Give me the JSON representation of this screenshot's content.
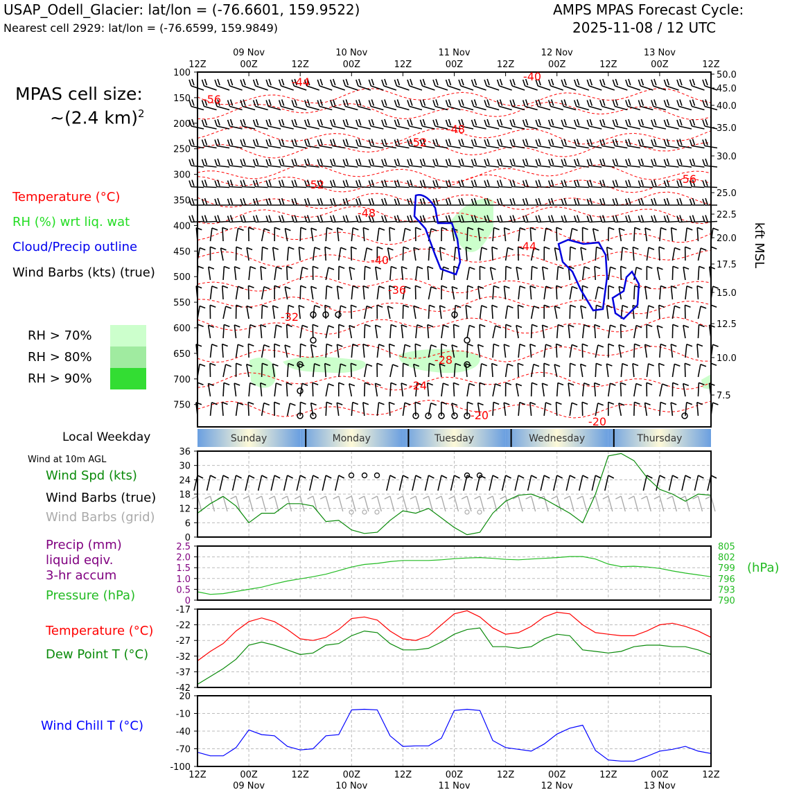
{
  "header": {
    "title": "USAP_Odell_Glacier: lat/lon = (-76.6601, 159.9522)",
    "subtitle": "Nearest cell 2929: lat/lon = (-76.6599, 159.9849)",
    "cycle_label": "AMPS MPAS Forecast Cycle:",
    "cycle_value": "2025-11-08 / 12 UTC"
  },
  "cell_size": {
    "line1": "MPAS cell size:",
    "line2": "~(2.4 km)",
    "sup": "2"
  },
  "legend": {
    "temperature": "Temperature (°C)",
    "rh": "RH (%) wrt liq. wat",
    "cloud": "Cloud/Precip outline",
    "barbs": "Wind Barbs (kts) (true)",
    "rh70": "RH > 70%",
    "rh80": "RH > 80%",
    "rh90": "RH > 90%"
  },
  "colors": {
    "temp_red": "#ff0000",
    "rh_light": "#ccffcc",
    "rh_mid": "#a0eba0",
    "rh_dark": "#33dd33",
    "cloud_blue": "#0000dd",
    "wind_green": "#0a8a0a",
    "dew_green": "#0a8a0a",
    "pressure_green": "#22bb22",
    "precip_purple": "#800080",
    "chill_blue": "#0000ff",
    "grid_barb_gray": "#aaaaaa"
  },
  "time_axis": {
    "hours_labels": [
      "12Z",
      "00Z",
      "12Z",
      "00Z",
      "12Z",
      "00Z",
      "12Z",
      "00Z",
      "12Z",
      "00Z",
      "12Z"
    ],
    "date_labels": [
      "09 Nov",
      "10 Nov",
      "11 Nov",
      "12 Nov",
      "13 Nov"
    ],
    "weekdays": [
      "Sunday",
      "Monday",
      "Tuesday",
      "Wednesday",
      "Thursday"
    ]
  },
  "weekday_title": "Local Weekday",
  "side_labels": {
    "wind10m": "Wind at 10m AGL",
    "wind_spd": "Wind Spd (kts)",
    "wind_barbs_true": "Wind Barbs (true)",
    "wind_barbs_grid": "Wind Barbs (grid)",
    "precip1": "Precip (mm)",
    "precip2": "liquid eqiv.",
    "precip3": "3-hr accum",
    "pressure": "Pressure (hPa)",
    "pressure_unit": "(hPa)",
    "temperature": "Temperature (°C)",
    "dewpoint": "Dew Point T (°C)",
    "windchill": "Wind Chill T (°C)",
    "kft": "kft MSL"
  },
  "chart_data": [
    {
      "type": "heatmap",
      "title": "",
      "ylabel": "",
      "y_left_ticks": [
        "100",
        "150",
        "200",
        "250",
        "300",
        "350",
        "400",
        "450",
        "500",
        "550",
        "600",
        "650",
        "700",
        "750"
      ],
      "y_right_ticks": [
        "50.0",
        "45.0",
        "40.0",
        "35.0",
        "30.0",
        "25.0",
        "22.5",
        "20.0",
        "17.5",
        "15.0",
        "12.5",
        "10.0",
        "7.5"
      ],
      "y_right_label": "kft MSL",
      "temperature_contour_labels": [
        "-44",
        "-40",
        "-56",
        "-48",
        "-52",
        "-52",
        "-56",
        "-48",
        "-44",
        "-40",
        "-36",
        "-32",
        "-28",
        "-24",
        "-20",
        "-20"
      ],
      "rh_shading": "RH > 70% areas near 350-450 hPa on 11 Nov and near 650-700 hPa",
      "cloud_outline": "blue outlines near 350-500 hPa on 11 Nov and 12-13 Nov"
    },
    {
      "type": "line",
      "name": "Wind Spd (kts)",
      "ylim": [
        0,
        36
      ],
      "yticks": [
        0,
        6,
        12,
        18,
        24,
        30,
        36
      ],
      "x_hours": [
        0,
        3,
        6,
        9,
        12,
        15,
        18,
        21,
        24,
        27,
        30,
        33,
        36,
        39,
        42,
        45,
        48,
        51,
        54,
        57,
        60,
        63,
        66,
        69,
        72,
        75,
        78,
        81,
        84,
        87,
        90,
        93,
        96,
        99,
        102,
        105,
        108,
        111,
        114,
        117,
        120
      ],
      "values": [
        10,
        14,
        17,
        13,
        6,
        10,
        10,
        14,
        14,
        13,
        6.5,
        7,
        3,
        1.5,
        2,
        7,
        11,
        10,
        12,
        8,
        4,
        1,
        2,
        10,
        15,
        17.5,
        18,
        16,
        13,
        10,
        6,
        18,
        34,
        35,
        32,
        25,
        20,
        18,
        15,
        18,
        17.5
      ]
    },
    {
      "type": "line",
      "name": "Pressure (hPa)",
      "ylim": [
        790,
        805
      ],
      "yticks_right": [
        790,
        793,
        796,
        799,
        802,
        805
      ],
      "precip_ylim": [
        0,
        2.5
      ],
      "precip_ticks": [
        "0",
        "0.5",
        "1.0",
        "1.5",
        "2.0",
        "2.5"
      ],
      "x_hours": [
        0,
        3,
        6,
        9,
        12,
        15,
        18,
        21,
        24,
        27,
        30,
        33,
        36,
        39,
        42,
        45,
        48,
        51,
        54,
        57,
        60,
        63,
        66,
        69,
        72,
        75,
        78,
        81,
        84,
        87,
        90,
        93,
        96,
        99,
        102,
        105,
        108,
        111,
        114,
        117,
        120
      ],
      "values": [
        792.3,
        791.6,
        791.8,
        792.4,
        793.0,
        793.6,
        794.5,
        795.3,
        795.9,
        796.5,
        797.2,
        798.2,
        799.2,
        799.9,
        800.2,
        800.7,
        801.0,
        801.0,
        801.0,
        801.2,
        801.5,
        801.7,
        801.8,
        801.6,
        801.3,
        801.2,
        801.4,
        801.6,
        801.8,
        802.1,
        802.1,
        801.4,
        800.0,
        799.3,
        799.4,
        799.2,
        798.8,
        798.1,
        797.5,
        797.0,
        796.5
      ]
    },
    {
      "type": "line",
      "series": [
        {
          "name": "Temperature (°C)",
          "values": [
            -33.5,
            -30.5,
            -28,
            -24,
            -21,
            -19.8,
            -21,
            -23.5,
            -26.5,
            -27,
            -26,
            -23.5,
            -20,
            -19.5,
            -20.5,
            -24,
            -26.5,
            -27,
            -25.5,
            -22,
            -18.5,
            -17.5,
            -19.5,
            -23,
            -25,
            -24.5,
            -22.5,
            -19.5,
            -18,
            -18.5,
            -22,
            -24.5,
            -25,
            -25.5,
            -25.5,
            -24,
            -22,
            -21.5,
            -22.5,
            -24,
            -26
          ]
        },
        {
          "name": "Dew Point T (°C)",
          "values": [
            -41,
            -38.5,
            -36,
            -33,
            -28.5,
            -27.5,
            -28.5,
            -30,
            -31.5,
            -31,
            -28.5,
            -28,
            -25.5,
            -24,
            -24.5,
            -28,
            -30,
            -30,
            -29.5,
            -27.5,
            -25,
            -23.5,
            -23,
            -29,
            -29,
            -29.5,
            -29,
            -26.5,
            -25,
            -25.5,
            -30,
            -30.5,
            -31,
            -30.5,
            -29,
            -28.5,
            -28.5,
            -29,
            -29,
            -30,
            -31.5
          ]
        }
      ],
      "ylim": [
        -42,
        -17
      ],
      "yticks": [
        -42,
        -37,
        -32,
        -27,
        -22,
        -17
      ],
      "x_hours": [
        0,
        3,
        6,
        9,
        12,
        15,
        18,
        21,
        24,
        27,
        30,
        33,
        36,
        39,
        42,
        45,
        48,
        51,
        54,
        57,
        60,
        63,
        66,
        69,
        72,
        75,
        78,
        81,
        84,
        87,
        90,
        93,
        96,
        99,
        102,
        105,
        108,
        111,
        114,
        117,
        120
      ]
    },
    {
      "type": "line",
      "name": "Wind Chill T (°C)",
      "ylim": [
        -100,
        20
      ],
      "yticks": [
        -100,
        -70,
        -40,
        -10,
        20
      ],
      "x_hours": [
        0,
        3,
        6,
        9,
        12,
        15,
        18,
        21,
        24,
        27,
        30,
        33,
        36,
        39,
        42,
        45,
        48,
        51,
        54,
        57,
        60,
        63,
        66,
        69,
        72,
        75,
        78,
        81,
        84,
        87,
        90,
        93,
        96,
        99,
        102,
        105,
        108,
        111,
        114,
        117,
        120
      ],
      "values": [
        -76,
        -82,
        -82,
        -68,
        -38,
        -46,
        -48,
        -66,
        -72,
        -70,
        -48,
        -46,
        -4,
        -3,
        -4,
        -48,
        -66,
        -65,
        -65,
        -52,
        -5,
        -3,
        -5,
        -56,
        -68,
        -71,
        -74,
        -62,
        -45,
        -35,
        -30,
        -73,
        -89,
        -91,
        -91,
        -83,
        -74,
        -71,
        -66,
        -74,
        -78
      ]
    }
  ]
}
